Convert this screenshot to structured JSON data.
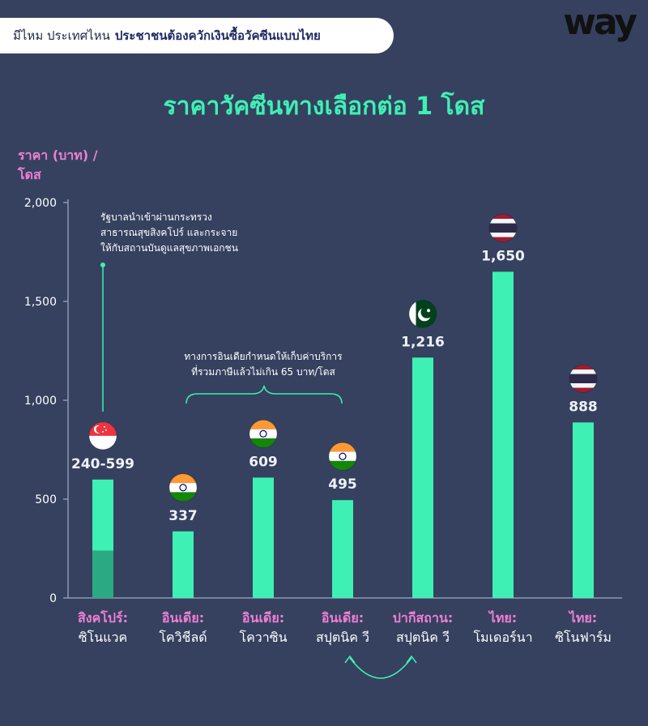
{
  "header": {
    "prefix": "มีไหม ประเทศไหน",
    "headline": "ประชาชนต้องควักเงินซื้อวัคซีนแบบไทย"
  },
  "brand": {
    "logo_text": "way"
  },
  "colors": {
    "background": "#35415f",
    "bar": "#3ff0b4",
    "bar_dark": "#2aa982",
    "title": "#3ff0b4",
    "category_country": "#f07fd4",
    "axis_text": "#ffffff"
  },
  "chart_data": {
    "type": "bar",
    "title": "ราคาวัคซีนทางเลือกต่อ 1 โดส",
    "ylabel_line1": "ราคา (บาท) /",
    "ylabel_line2": "โดส",
    "ylim": [
      0,
      2000
    ],
    "yticks": [
      "0",
      "500",
      "1,000",
      "1,500",
      "2,000"
    ],
    "grid": false,
    "bars": [
      {
        "country": "สิงคโปร์:",
        "vaccine": "ซิโนแวค",
        "value_label": "240-599",
        "low": 240,
        "value": 599,
        "flag": "singapore-flag"
      },
      {
        "country": "อินเดีย:",
        "vaccine": "โควิชีลด์",
        "value_label": "337",
        "value": 337,
        "flag": "india-flag"
      },
      {
        "country": "อินเดีย:",
        "vaccine": "โควาซิน",
        "value_label": "609",
        "value": 609,
        "flag": "india-flag"
      },
      {
        "country": "อินเดีย:",
        "vaccine": "สปุตนิค วี",
        "value_label": "495",
        "value": 495,
        "flag": "india-flag"
      },
      {
        "country": "ปากีสถาน:",
        "vaccine": "สปุตนิค วี",
        "value_label": "1,216",
        "value": 1216,
        "flag": "pakistan-flag"
      },
      {
        "country": "ไทย:",
        "vaccine": "โมเดอร์นา",
        "value_label": "1,650",
        "value": 1650,
        "flag": "thailand-flag"
      },
      {
        "country": "ไทย:",
        "vaccine": "ซิโนฟาร์ม",
        "value_label": "888",
        "value": 888,
        "flag": "thailand-flag"
      }
    ],
    "annotations": {
      "singapore": [
        "รัฐบาลนำเข้าผ่านกระทรวง",
        "สาธารณสุขสิงคโปร์ และกระจาย",
        "ให้กับสถานบันดูแลสุขภาพเอกชน"
      ],
      "india": [
        "ทางการอินเดียกำหนดให้เก็บค่าบริการ",
        "ที่รวมภาษีแล้วไม่เกิน 65 บาท/โดส"
      ]
    }
  }
}
